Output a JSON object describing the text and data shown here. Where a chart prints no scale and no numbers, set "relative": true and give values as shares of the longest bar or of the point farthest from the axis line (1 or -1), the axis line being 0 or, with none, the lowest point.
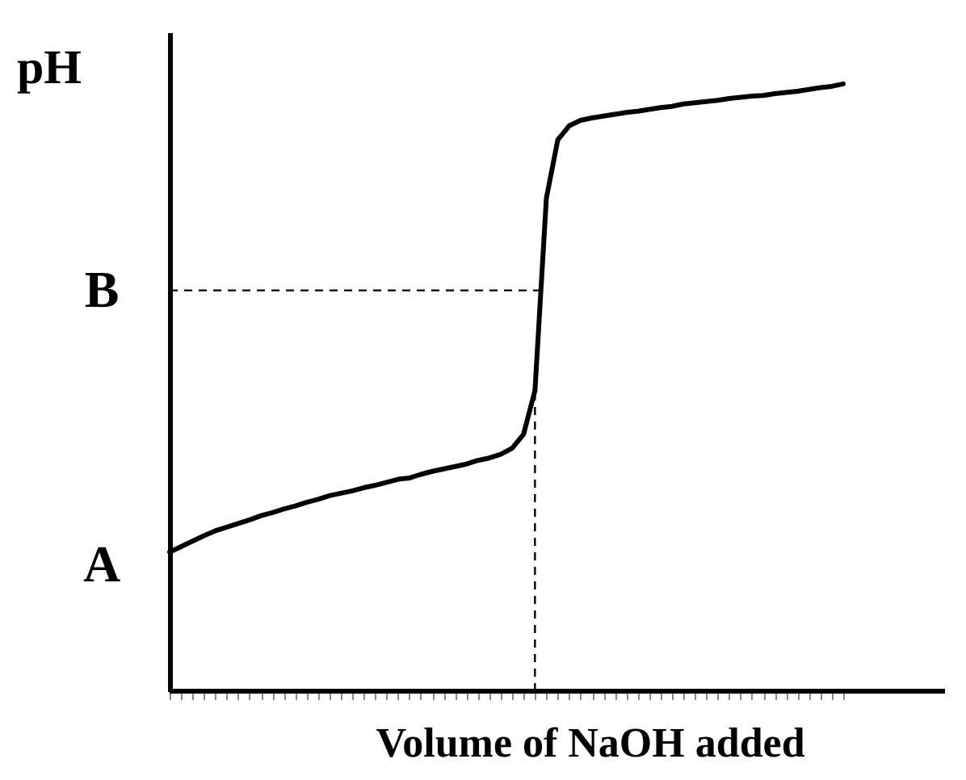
{
  "chart_data": {
    "type": "line",
    "relative": true,
    "xlabel": "Volume of NaOH added",
    "ylabel": "pH",
    "categories": [
      null,
      null,
      null,
      null,
      null,
      null,
      null,
      null,
      null,
      null,
      null,
      null,
      null,
      null,
      null,
      null,
      null,
      null,
      null,
      null,
      null,
      null,
      null,
      null,
      null,
      null,
      null,
      null,
      null,
      null,
      null,
      null,
      null,
      null,
      null,
      null,
      null,
      null,
      null,
      null,
      null,
      null,
      null,
      null,
      null,
      null,
      null,
      null,
      null,
      null,
      null,
      null,
      null,
      null,
      null,
      null,
      null,
      null,
      null,
      null
    ],
    "series": [
      {
        "color": "#000000",
        "line_style": "solid",
        "values": [
          0.229,
          0.238,
          0.247,
          0.256,
          0.264,
          0.27,
          0.276,
          0.282,
          0.289,
          0.294,
          0.3,
          0.305,
          0.311,
          0.316,
          0.322,
          0.326,
          0.33,
          0.335,
          0.339,
          0.344,
          0.349,
          0.351,
          0.357,
          0.362,
          0.366,
          0.37,
          0.374,
          0.38,
          0.384,
          0.39,
          0.4,
          0.423,
          0.495,
          0.812,
          0.908,
          0.931,
          0.94,
          0.944,
          0.947,
          0.95,
          0.953,
          0.955,
          0.958,
          0.961,
          0.963,
          0.967,
          0.969,
          0.971,
          0.973,
          0.976,
          0.978,
          0.98,
          0.981,
          0.984,
          0.986,
          0.988,
          0.991,
          0.994,
          0.996,
          1
        ]
      }
    ],
    "ref_lines": [
      {
        "axis": "y",
        "value": 0.66,
        "label": "B",
        "color": "#000000",
        "line_style": "dashed"
      }
    ],
    "annotations": [
      "A"
    ]
  }
}
